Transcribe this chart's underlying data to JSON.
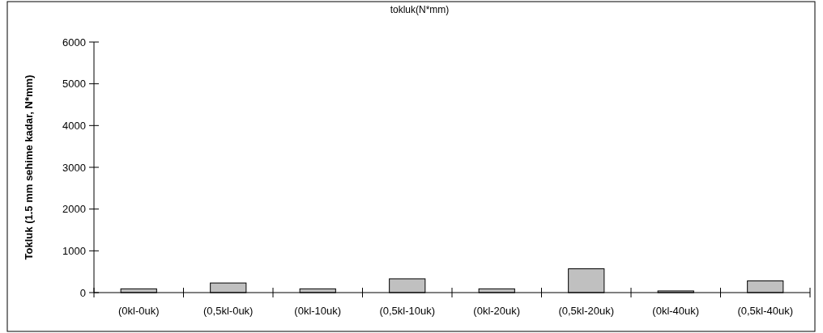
{
  "chart_data": {
    "type": "bar",
    "title": "tokluk(N*mm)",
    "ylabel": "Tokluk (1.5 mm sehime kadar, N*mm)",
    "categories": [
      "(0kl-0uk)",
      "(0,5kl-0uk)",
      "(0kl-10uk)",
      "(0,5kl-10uk)",
      "(0kl-20uk)",
      "(0,5kl-20uk)",
      "(0kl-40uk)",
      "(0,5kl-40uk)"
    ],
    "values": [
      90,
      230,
      90,
      330,
      90,
      570,
      40,
      280
    ],
    "color": "#c0c0c0",
    "ylim": [
      0,
      6000
    ],
    "yticks": [
      0,
      1000,
      2000,
      3000,
      4000,
      5000,
      6000
    ],
    "grid": false
  }
}
